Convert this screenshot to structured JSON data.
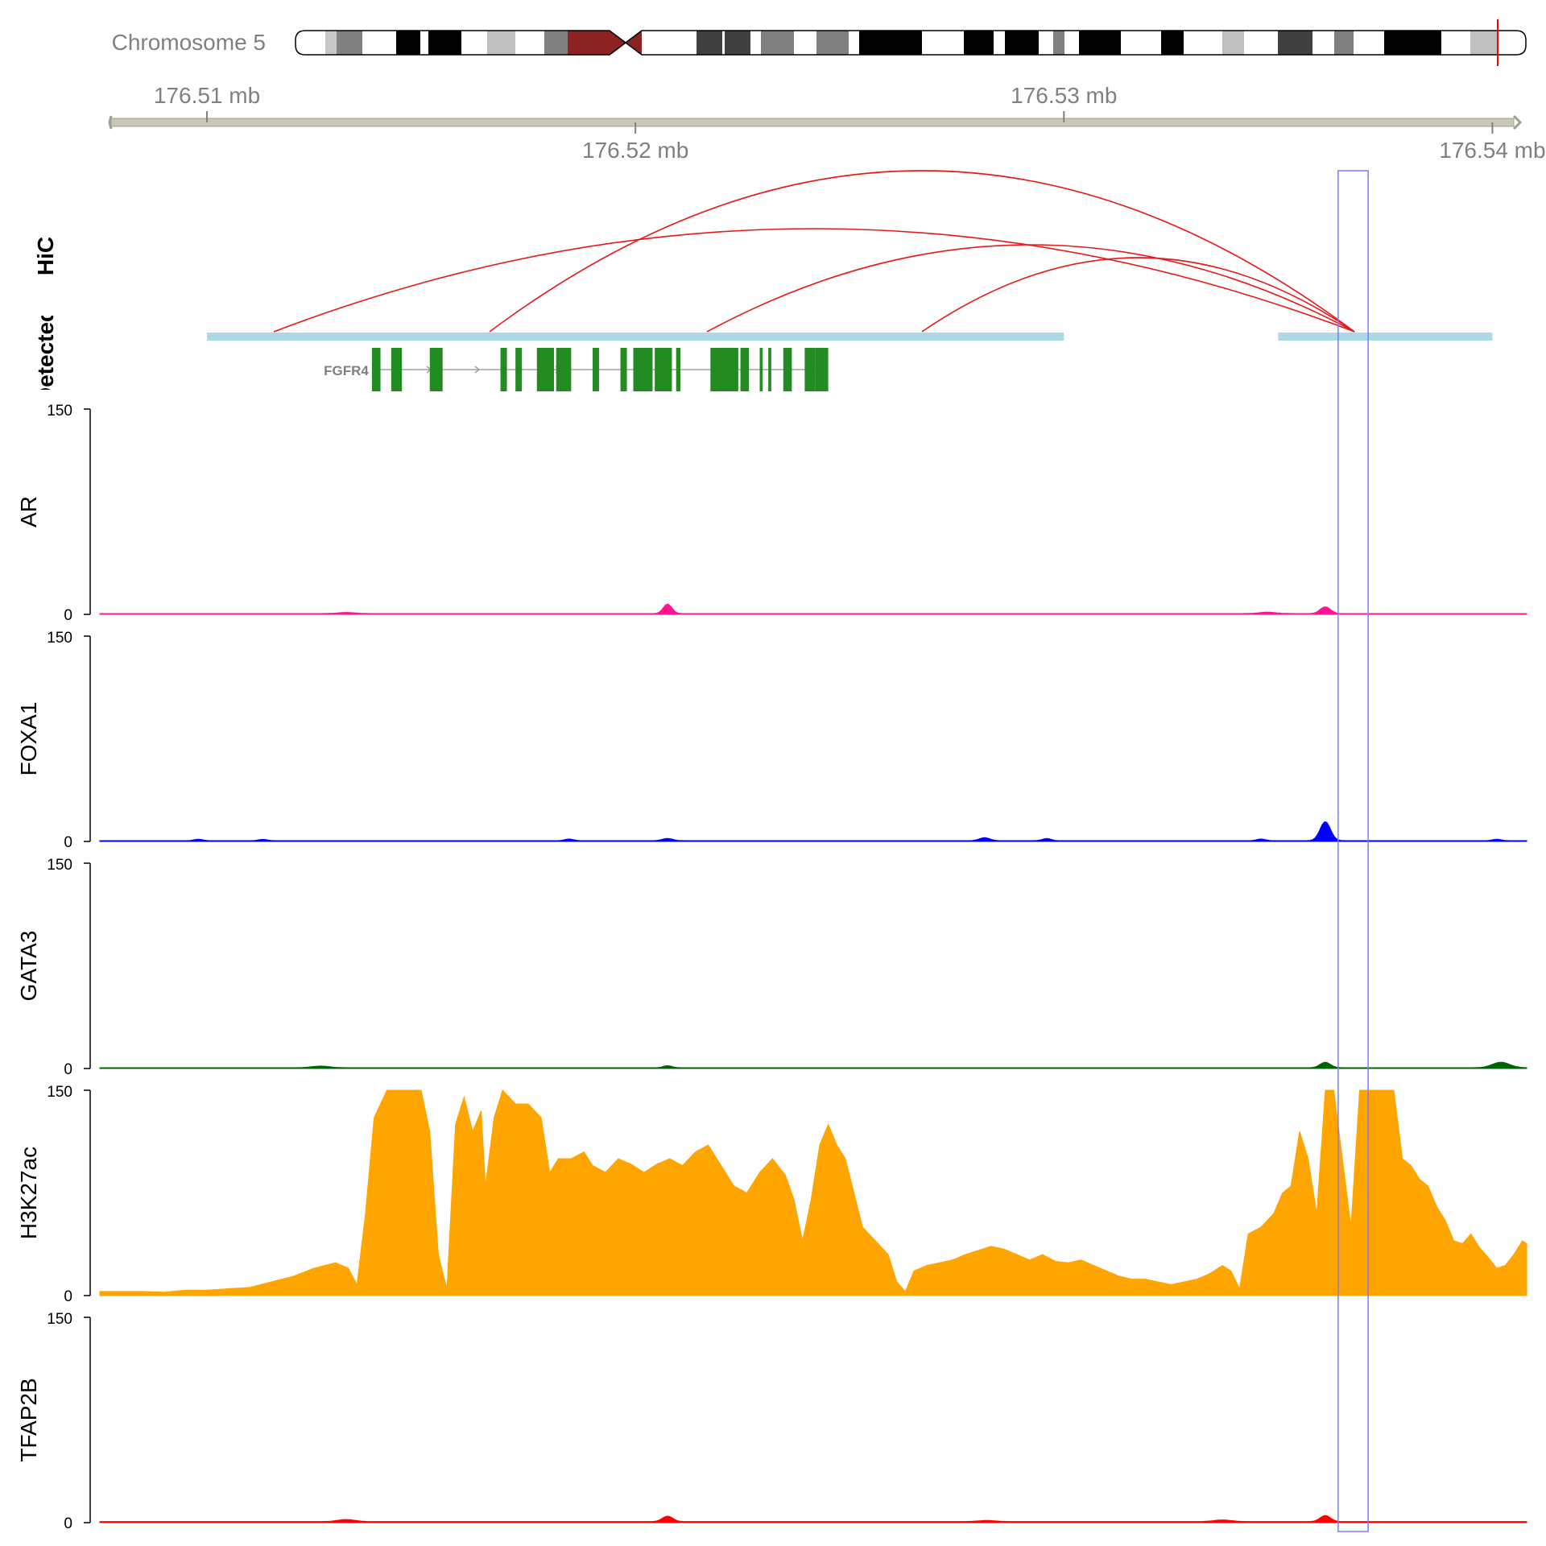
{
  "header": {
    "chromosome_label": "Chromosome 5"
  },
  "genome_axis": {
    "unit": "mb",
    "range_mb": [
      176.5075,
      176.5408
    ],
    "ticks_top": [
      "176.51 mb",
      "176.53 mb"
    ],
    "ticks_bottom": [
      "176.52 mb",
      "176.54 mb"
    ]
  },
  "colors": {
    "hic_arc": "#e41a1c",
    "detected_bar": "#add8e6",
    "gene": "#228b22",
    "highlight": "#7b7bff",
    "AR": "#ff1493",
    "FOXA1": "#0000ff",
    "GATA3": "#006400",
    "H3K27ac": "#ffa500",
    "TFAP2B": "#ff0000"
  },
  "tracks": {
    "hic_label": "HiC",
    "detected_label": "Detected",
    "gene_label": "FGFR4"
  },
  "chart_data": {
    "type": "area",
    "x_unit": "mb",
    "xlim": [
      176.5075,
      176.5408
    ],
    "ylim": [
      0,
      150
    ],
    "y_ticks": [
      "0",
      "150"
    ],
    "highlight_mb": [
      176.5364,
      176.5371
    ],
    "hic_anchor_mb": 176.5368,
    "hic_arcs_from_mb": [
      176.5135,
      176.5185,
      176.5235,
      176.5285,
      176.5368
    ],
    "hic_arc_peak_labels": [],
    "detected_regions_mb": [
      [
        176.51,
        176.53
      ],
      [
        176.535,
        176.54
      ]
    ],
    "gene_exons_mb": [
      [
        176.51385,
        176.51405
      ],
      [
        176.5143,
        176.51455
      ],
      [
        176.5152,
        176.5155
      ],
      [
        176.51685,
        176.517
      ],
      [
        176.5172,
        176.51735
      ],
      [
        176.5177,
        176.5181
      ],
      [
        176.51815,
        176.5185
      ],
      [
        176.519,
        176.51915
      ],
      [
        176.51965,
        176.5198
      ],
      [
        176.51995,
        176.5204
      ],
      [
        176.52045,
        176.52085
      ],
      [
        176.52095,
        176.52105
      ],
      [
        176.52175,
        176.5224
      ],
      [
        176.52245,
        176.52265
      ],
      [
        176.5229,
        176.52297
      ],
      [
        176.5231,
        176.52317
      ],
      [
        176.52345,
        176.52365
      ],
      [
        176.52395,
        176.5242
      ],
      [
        176.5242,
        176.5245
      ]
    ],
    "series": [
      {
        "name": "AR",
        "peaks": [
          [
            176.52075,
            7,
            0.0001
          ],
          [
            176.5361,
            5,
            0.00012
          ],
          [
            176.51325,
            0.8,
            0.0002
          ],
          [
            176.53475,
            1,
            0.0002
          ]
        ],
        "baseline": 0.6
      },
      {
        "name": "FOXA1",
        "peaks": [
          [
            176.5361,
            14,
            0.00012
          ],
          [
            176.52815,
            2.2,
            0.00012
          ],
          [
            176.52075,
            1.6,
            0.00012
          ],
          [
            176.5296,
            1.6,
            0.0001
          ],
          [
            176.51845,
            1.2,
            0.0001
          ],
          [
            176.5098,
            1.0,
            0.0001
          ],
          [
            176.507,
            0.8,
            0.0001
          ],
          [
            176.5113,
            0.9,
            0.0001
          ],
          [
            176.5346,
            1.2,
            0.0001
          ],
          [
            176.5401,
            1.0,
            0.0001
          ]
        ],
        "baseline": 0.6
      },
      {
        "name": "GATA3",
        "peaks": [
          [
            176.5361,
            4,
            0.00012
          ],
          [
            176.5402,
            4,
            0.0002
          ],
          [
            176.52075,
            1.5,
            0.0001
          ],
          [
            176.51265,
            1.2,
            0.0002
          ]
        ],
        "baseline": 0.6
      },
      {
        "name": "H3K27ac",
        "profile": [
          [
            176.5075,
            3
          ],
          [
            176.508,
            3
          ],
          [
            176.5085,
            3
          ],
          [
            176.509,
            2.5
          ],
          [
            176.5095,
            4
          ],
          [
            176.51,
            4
          ],
          [
            176.5105,
            5
          ],
          [
            176.511,
            6
          ],
          [
            176.5115,
            10
          ],
          [
            176.512,
            14
          ],
          [
            176.5125,
            20
          ],
          [
            176.513,
            24
          ],
          [
            176.5133,
            20
          ],
          [
            176.5135,
            8
          ],
          [
            176.5137,
            60
          ],
          [
            176.5139,
            130
          ],
          [
            176.5142,
            150
          ],
          [
            176.5145,
            150
          ],
          [
            176.515,
            150
          ],
          [
            176.5152,
            120
          ],
          [
            176.5154,
            30
          ],
          [
            176.5156,
            5
          ],
          [
            176.5158,
            125
          ],
          [
            176.516,
            145
          ],
          [
            176.5162,
            120
          ],
          [
            176.5164,
            135
          ],
          [
            176.5165,
            80
          ],
          [
            176.5167,
            130
          ],
          [
            176.5169,
            150
          ],
          [
            176.5172,
            140
          ],
          [
            176.5175,
            140
          ],
          [
            176.5178,
            130
          ],
          [
            176.518,
            90
          ],
          [
            176.5182,
            100
          ],
          [
            176.5185,
            100
          ],
          [
            176.5188,
            105
          ],
          [
            176.519,
            95
          ],
          [
            176.5193,
            90
          ],
          [
            176.5196,
            100
          ],
          [
            176.5199,
            96
          ],
          [
            176.5202,
            90
          ],
          [
            176.5205,
            96
          ],
          [
            176.5208,
            100
          ],
          [
            176.5211,
            95
          ],
          [
            176.5214,
            105
          ],
          [
            176.5217,
            110
          ],
          [
            176.522,
            95
          ],
          [
            176.5223,
            80
          ],
          [
            176.5226,
            75
          ],
          [
            176.5229,
            90
          ],
          [
            176.5232,
            100
          ],
          [
            176.5235,
            88
          ],
          [
            176.5237,
            70
          ],
          [
            176.5239,
            40
          ],
          [
            176.5241,
            70
          ],
          [
            176.5243,
            110
          ],
          [
            176.5245,
            125
          ],
          [
            176.5247,
            110
          ],
          [
            176.5249,
            100
          ],
          [
            176.5251,
            75
          ],
          [
            176.5253,
            50
          ],
          [
            176.5256,
            40
          ],
          [
            176.5259,
            30
          ],
          [
            176.5261,
            10
          ],
          [
            176.5263,
            3
          ],
          [
            176.5265,
            18
          ],
          [
            176.5268,
            22
          ],
          [
            176.5271,
            24
          ],
          [
            176.5274,
            26
          ],
          [
            176.5277,
            30
          ],
          [
            176.528,
            33
          ],
          [
            176.5283,
            36
          ],
          [
            176.5286,
            34
          ],
          [
            176.5289,
            30
          ],
          [
            176.5292,
            26
          ],
          [
            176.5295,
            30
          ],
          [
            176.5298,
            25
          ],
          [
            176.5301,
            24
          ],
          [
            176.5304,
            26
          ],
          [
            176.5307,
            22
          ],
          [
            176.531,
            18
          ],
          [
            176.5313,
            14
          ],
          [
            176.5316,
            12
          ],
          [
            176.5319,
            12
          ],
          [
            176.5322,
            10
          ],
          [
            176.5325,
            8
          ],
          [
            176.5328,
            10
          ],
          [
            176.5331,
            12
          ],
          [
            176.5334,
            16
          ],
          [
            176.5337,
            22
          ],
          [
            176.5339,
            18
          ],
          [
            176.5341,
            5
          ],
          [
            176.5343,
            45
          ],
          [
            176.5346,
            50
          ],
          [
            176.5349,
            60
          ],
          [
            176.5351,
            75
          ],
          [
            176.5353,
            80
          ],
          [
            176.5355,
            120
          ],
          [
            176.5357,
            100
          ],
          [
            176.5359,
            60
          ],
          [
            176.5361,
            150
          ],
          [
            176.5363,
            150
          ],
          [
            176.5365,
            100
          ],
          [
            176.5367,
            50
          ],
          [
            176.5369,
            150
          ],
          [
            176.5372,
            150
          ],
          [
            176.5375,
            150
          ],
          [
            176.5377,
            150
          ],
          [
            176.5379,
            100
          ],
          [
            176.5381,
            95
          ],
          [
            176.5383,
            85
          ],
          [
            176.5385,
            80
          ],
          [
            176.5387,
            65
          ],
          [
            176.5389,
            55
          ],
          [
            176.5391,
            40
          ],
          [
            176.5393,
            38
          ],
          [
            176.5395,
            45
          ],
          [
            176.5397,
            35
          ],
          [
            176.5399,
            28
          ],
          [
            176.5401,
            20
          ],
          [
            176.5403,
            22
          ],
          [
            176.5405,
            30
          ],
          [
            176.5407,
            40
          ],
          [
            176.5408,
            38
          ]
        ]
      },
      {
        "name": "TFAP2B",
        "peaks": [
          [
            176.5361,
            4.5,
            0.00012
          ],
          [
            176.52075,
            4,
            0.00012
          ],
          [
            176.51325,
            1.5,
            0.0002
          ],
          [
            176.5337,
            1.2,
            0.0002
          ],
          [
            176.5065,
            0.8,
            0.0002
          ],
          [
            176.5282,
            0.8,
            0.0002
          ]
        ],
        "baseline": 0.8
      }
    ]
  }
}
